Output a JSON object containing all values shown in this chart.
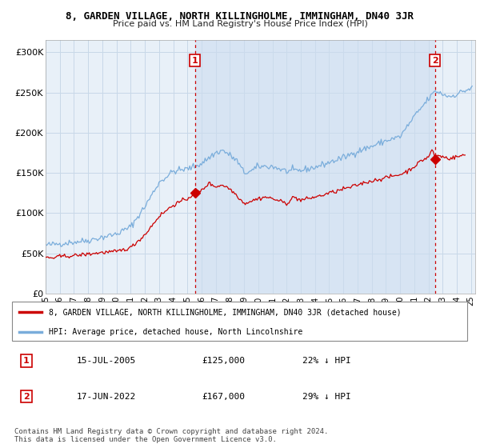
{
  "title": "8, GARDEN VILLAGE, NORTH KILLINGHOLME, IMMINGHAM, DN40 3JR",
  "subtitle": "Price paid vs. HM Land Registry's House Price Index (HPI)",
  "ylabel_ticks": [
    "£0",
    "£50K",
    "£100K",
    "£150K",
    "£200K",
    "£250K",
    "£300K"
  ],
  "ytick_values": [
    0,
    50000,
    100000,
    150000,
    200000,
    250000,
    300000
  ],
  "ylim": [
    0,
    315000
  ],
  "xlim_start": 1995.0,
  "xlim_end": 2025.3,
  "sale1_x": 2005.54,
  "sale1_price": 125000,
  "sale2_x": 2022.46,
  "sale2_price": 167000,
  "legend_red": "8, GARDEN VILLAGE, NORTH KILLINGHOLME, IMMINGHAM, DN40 3JR (detached house)",
  "legend_blue": "HPI: Average price, detached house, North Lincolnshire",
  "footnote": "Contains HM Land Registry data © Crown copyright and database right 2024.\nThis data is licensed under the Open Government Licence v3.0.",
  "red_color": "#cc0000",
  "blue_color": "#7aaddb",
  "fill_color": "#ddeeff",
  "sale_info": [
    {
      "num": "1",
      "date": "15-JUL-2005",
      "price": "£125,000",
      "note": "22% ↓ HPI"
    },
    {
      "num": "2",
      "date": "17-JUN-2022",
      "price": "£167,000",
      "note": "29% ↓ HPI"
    }
  ]
}
